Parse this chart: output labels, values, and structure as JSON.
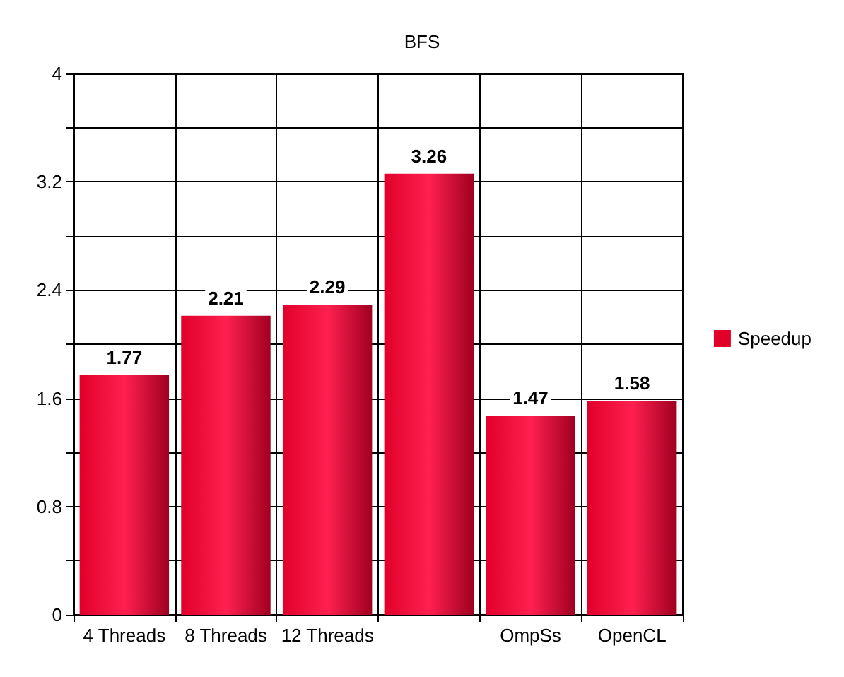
{
  "chart_data": {
    "type": "bar",
    "title": "BFS",
    "categories": [
      "4 Threads",
      "8 Threads",
      "12 Threads",
      null,
      "OmpSs",
      "OpenCL"
    ],
    "series": [
      {
        "name": "Speedup",
        "color": "#e0002a",
        "values": [
          1.77,
          2.21,
          2.29,
          3.26,
          1.47,
          1.58
        ]
      }
    ],
    "ylim": [
      0,
      4
    ],
    "yticks": [
      0,
      {
        "value": 0.4,
        "label": null
      },
      0.8,
      {
        "value": 1.2,
        "label": null
      },
      1.6,
      {
        "value": 2.0,
        "label": null
      },
      2.4,
      {
        "value": 2.8,
        "label": null
      },
      3.2,
      {
        "value": 3.6,
        "label": null
      },
      4
    ],
    "grid": true,
    "legend": "right",
    "data_labels": true
  }
}
